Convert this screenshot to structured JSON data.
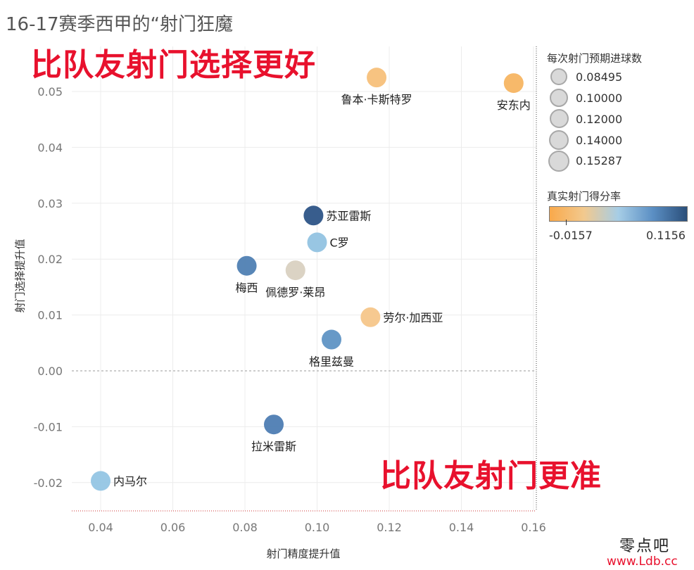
{
  "chart_data": {
    "type": "scatter",
    "title": "16-17赛季西甲的“射门狂魔",
    "xlabel": "射门精度提升值",
    "ylabel": "射门选择提升值",
    "xlim": [
      0.032,
      0.16
    ],
    "ylim": [
      -0.025,
      0.058
    ],
    "x_ticks": [
      "0.04",
      "0.06",
      "0.08",
      "0.10",
      "0.12",
      "0.14",
      "0.16"
    ],
    "y_ticks": [
      "0.05",
      "0.04",
      "0.03",
      "0.02",
      "0.01",
      "0.00",
      "-0.01",
      "-0.02"
    ],
    "grid": true,
    "annotations": {
      "top_left": "比队友射门选择更好",
      "bottom_right": "比队友射门更准"
    },
    "size_legend": {
      "title": "每次射门预期进球数",
      "items": [
        "0.08495",
        "0.10000",
        "0.12000",
        "0.14000",
        "0.15287"
      ]
    },
    "color_legend": {
      "title": "真实射门得分率",
      "min_label": "-0.0157",
      "max_label": "0.1156",
      "colors": [
        "#f9a94b",
        "#f2c98e",
        "#a6cde6",
        "#5b8fc4",
        "#2b4f7a"
      ]
    },
    "points": [
      {
        "name": "鲁本·卡斯特罗",
        "x": 0.1165,
        "y": 0.0525,
        "color": "#f7c07a",
        "label_pos": "below"
      },
      {
        "name": "安东内",
        "x": 0.1545,
        "y": 0.0515,
        "color": "#f7b562",
        "label_pos": "below"
      },
      {
        "name": "苏亚雷斯",
        "x": 0.099,
        "y": 0.0278,
        "color": "#2d5487",
        "label_pos": "right"
      },
      {
        "name": "C罗",
        "x": 0.1,
        "y": 0.023,
        "color": "#92c3e2",
        "label_pos": "right"
      },
      {
        "name": "梅西",
        "x": 0.0805,
        "y": 0.0188,
        "color": "#4f7fb3",
        "label_pos": "below"
      },
      {
        "name": "佩德罗·莱昂",
        "x": 0.094,
        "y": 0.018,
        "color": "#d9d1c1",
        "label_pos": "below"
      },
      {
        "name": "劳尔·加西亚",
        "x": 0.1148,
        "y": 0.0096,
        "color": "#f5c68a",
        "label_pos": "right"
      },
      {
        "name": "格里兹曼",
        "x": 0.104,
        "y": 0.0056,
        "color": "#5f93c4",
        "label_pos": "below"
      },
      {
        "name": "拉米雷斯",
        "x": 0.088,
        "y": -0.0096,
        "color": "#4e7db3",
        "label_pos": "below"
      },
      {
        "name": "内马尔",
        "x": 0.04,
        "y": -0.0197,
        "color": "#93c5e4",
        "label_pos": "right"
      }
    ]
  },
  "watermark": {
    "text": "零点吧",
    "url": "www.Ldb.cc"
  }
}
